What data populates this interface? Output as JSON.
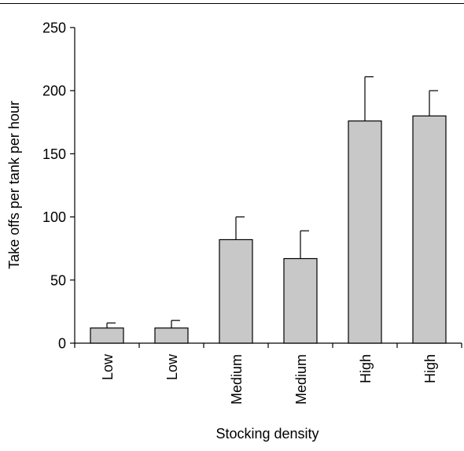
{
  "chart_data": {
    "type": "bar",
    "title": "",
    "xlabel": "Stocking density",
    "ylabel": "Take offs per tank per hour",
    "categories": [
      "Low",
      "Low",
      "Medium",
      "Medium",
      "High",
      "High"
    ],
    "values": [
      12,
      12,
      82,
      67,
      176,
      180
    ],
    "error_upper": [
      16,
      18,
      100,
      89,
      211,
      200
    ],
    "ylim": [
      0,
      250
    ],
    "yticks": [
      "0",
      "50",
      "100",
      "150",
      "200",
      "250"
    ],
    "grid": false,
    "legend": "none",
    "bar_color": "#c8c8c8",
    "edge_color": "#000000"
  }
}
